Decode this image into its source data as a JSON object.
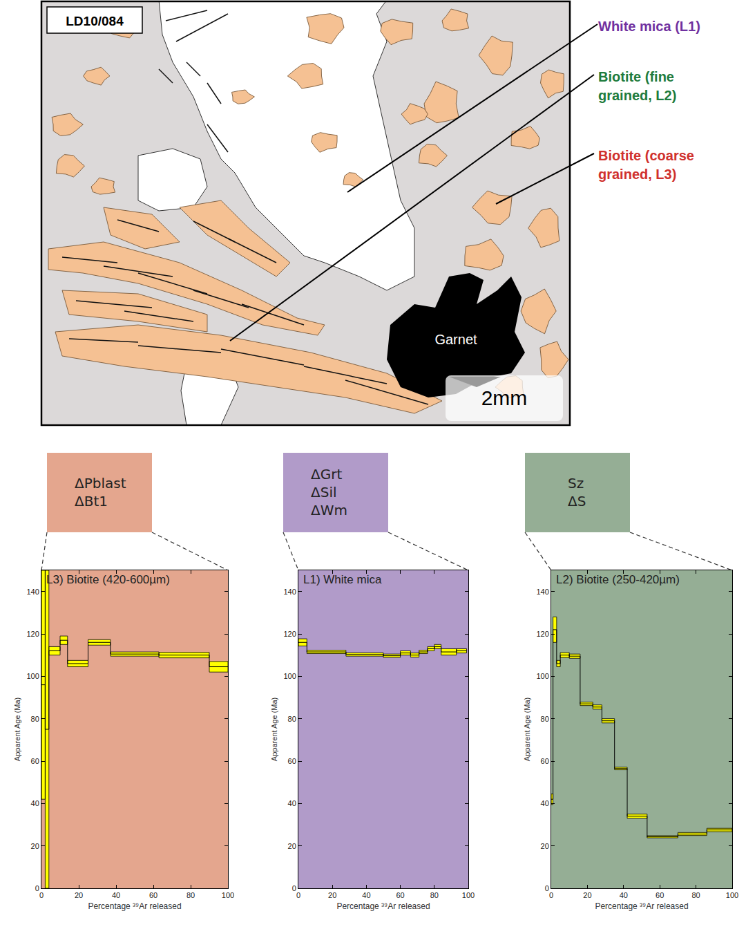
{
  "diagram": {
    "sample": "LD10/084",
    "labels": [
      {
        "text": "White mica (L1)",
        "color": "#7030a0"
      },
      {
        "text": "Biotite (fine grained, L2)",
        "color": "#1e7b3c"
      },
      {
        "text": "Biotite (coarse grained, L3)",
        "color": "#d0312d"
      }
    ],
    "mineral_label": "Garnet",
    "scale_bar": "2mm"
  },
  "chart_data": [
    {
      "type": "step",
      "title": "L3) Biotite (420-600µm)",
      "annotations": [
        "ΔPblast",
        "ΔBt1"
      ],
      "x_label": "Percentage ³⁹Ar released",
      "y_label": "Apparent Age (Ma)",
      "color": "#ffff00",
      "bins": [
        0,
        2,
        4,
        10,
        14,
        25,
        37,
        63,
        90,
        100
      ],
      "values": [
        96,
        75,
        112,
        117,
        106,
        116,
        110.5,
        110,
        104.5
      ],
      "errors": [
        54,
        75,
        2,
        2,
        1.5,
        1.3,
        1,
        1.3,
        2.5
      ],
      "xlim": [
        0,
        100
      ],
      "xticks": [
        0,
        20,
        40,
        60,
        80,
        100
      ],
      "ylim": [
        0,
        150
      ],
      "yticks": [
        0,
        20,
        40,
        60,
        80,
        100,
        120,
        140
      ]
    },
    {
      "type": "step",
      "title": "L1) White mica",
      "annotations": [
        "ΔGrt",
        "ΔSil",
        "ΔWm"
      ],
      "x_label": "Percentage ³⁹Ar released",
      "y_label": "Apparent Age (Ma)",
      "color": "#ffff00",
      "bins": [
        0,
        5,
        28,
        50,
        60,
        66,
        71,
        76,
        80,
        84,
        93,
        99
      ],
      "values": [
        116,
        111.5,
        110.3,
        109.7,
        111,
        110,
        111.5,
        113,
        114,
        111.5,
        112
      ],
      "errors": [
        1.7,
        0.8,
        0.8,
        0.8,
        1,
        1,
        0.8,
        1,
        1,
        1.5,
        1
      ],
      "xlim": [
        0,
        100
      ],
      "xticks": [
        0,
        20,
        40,
        60,
        80,
        100
      ],
      "ylim": [
        0,
        150
      ],
      "yticks": [
        0,
        20,
        40,
        60,
        80,
        100,
        120,
        140
      ]
    },
    {
      "type": "step",
      "title": "L2) Biotite (250-420µm)",
      "annotations": [
        "Sz",
        "ΔS"
      ],
      "x_label": "Percentage ³⁹Ar released",
      "y_label": "Apparent Age (Ma)",
      "color": "#ffff00",
      "bins": [
        0,
        1,
        3,
        5,
        10,
        16,
        23,
        28,
        35,
        42,
        53,
        70,
        86,
        100
      ],
      "values": [
        42,
        122,
        106,
        110,
        109.5,
        87,
        85.5,
        79,
        56.5,
        34,
        24.3,
        25.6,
        27.5
      ],
      "errors": [
        2.5,
        6,
        1.5,
        1.2,
        1,
        0.8,
        1,
        1,
        0.6,
        1,
        0.5,
        0.7,
        0.8
      ],
      "xlim": [
        0,
        100
      ],
      "xticks": [
        0,
        20,
        40,
        60,
        80,
        100
      ],
      "ylim": [
        0,
        150
      ],
      "yticks": [
        0,
        20,
        40,
        60,
        80,
        100,
        120,
        140
      ]
    }
  ]
}
